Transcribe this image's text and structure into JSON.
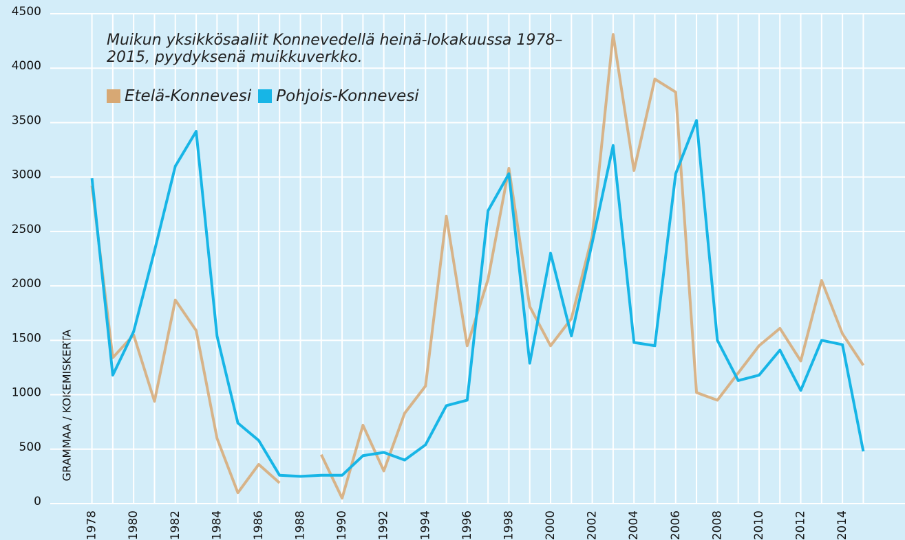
{
  "chart_data": {
    "type": "line",
    "subtitle": "Muikun yksikkösaaliit Konnevedellä heinä-lokakuussa 1978–2015, pyydyksenä muikkuverkko.",
    "y_label": "GRAMMAA / KOKEMISKERTA",
    "x": [
      1978,
      1979,
      1980,
      1981,
      1982,
      1983,
      1984,
      1985,
      1986,
      1987,
      1988,
      1989,
      1990,
      1991,
      1992,
      1993,
      1994,
      1995,
      1996,
      1997,
      1998,
      1999,
      2000,
      2001,
      2002,
      2003,
      2004,
      2005,
      2006,
      2007,
      2008,
      2009,
      2010,
      2011,
      2012,
      2013,
      2014,
      2015
    ],
    "series": [
      {
        "name": "Etelä-Konnevesi",
        "color": "#d7a874",
        "values": [
          2920,
          1340,
          1550,
          940,
          1870,
          1590,
          600,
          100,
          360,
          190,
          null,
          450,
          50,
          720,
          300,
          830,
          1080,
          2640,
          1450,
          2060,
          3080,
          1810,
          1450,
          1700,
          2460,
          4310,
          3060,
          3900,
          3780,
          1020,
          950,
          1200,
          1450,
          1610,
          1310,
          2050,
          1560,
          1270
        ]
      },
      {
        "name": "Pohjois-Konnevesi",
        "color": "#17b5e6",
        "values": [
          2990,
          1180,
          1580,
          2320,
          3100,
          3420,
          1540,
          740,
          580,
          260,
          250,
          260,
          260,
          440,
          470,
          400,
          540,
          900,
          950,
          2690,
          3030,
          1290,
          2300,
          1540,
          2400,
          3290,
          1480,
          1450,
          3030,
          3520,
          1500,
          1130,
          1180,
          1410,
          1040,
          1500,
          1460,
          480
        ]
      }
    ],
    "xlim": [
      1976,
      2017
    ],
    "xticks": [
      1978,
      1980,
      1982,
      1984,
      1986,
      1988,
      1990,
      1992,
      1994,
      1996,
      1998,
      2000,
      2002,
      2004,
      2006,
      2008,
      2010,
      2012,
      2014
    ],
    "ylim": [
      0,
      4500
    ],
    "yticks": [
      0,
      500,
      1000,
      1500,
      2000,
      2500,
      3000,
      3500,
      4000,
      4500
    ],
    "grid": true
  }
}
